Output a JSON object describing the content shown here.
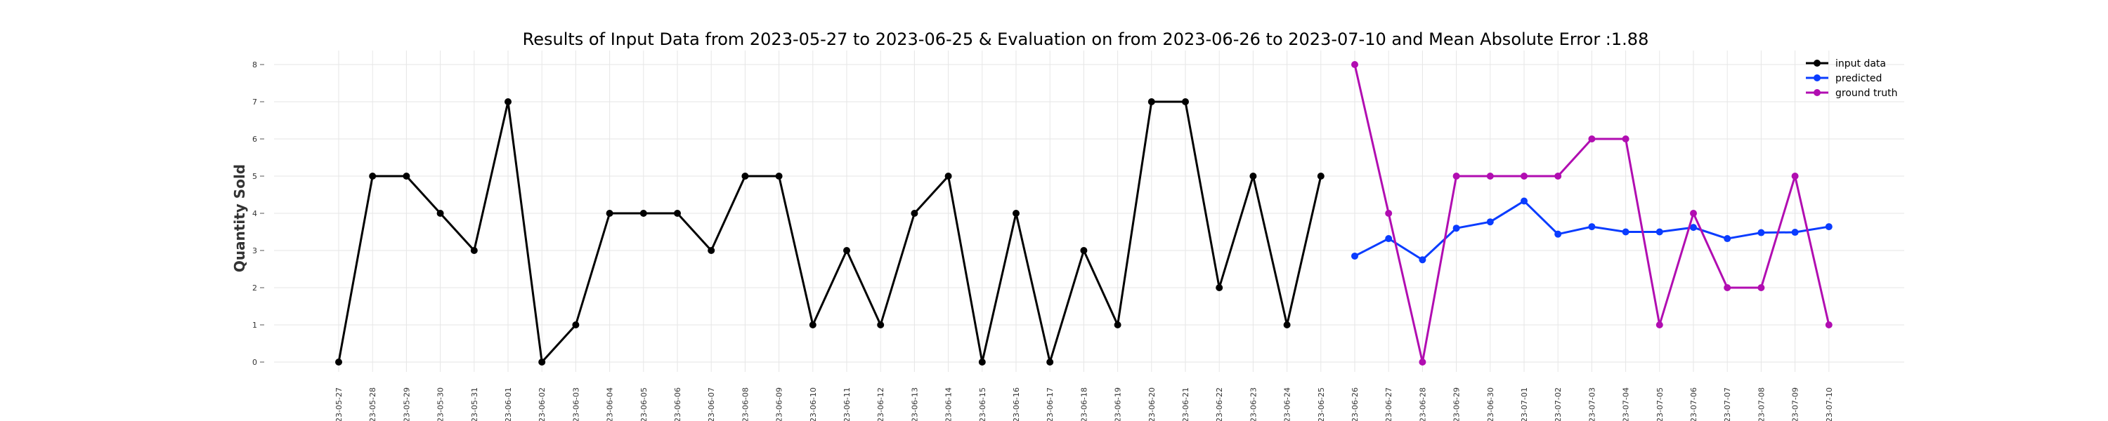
{
  "chart_data": {
    "type": "line",
    "title": "Results of Input Data from 2023-05-27 to 2023-06-25 & Evaluation on from 2023-06-26 to 2023-07-10 and Mean Absolute Error  :1.88",
    "ylabel": "Quantity Sold",
    "xlabel": "",
    "ylim": [
      0,
      8
    ],
    "yticks": [
      "0",
      "1",
      "2",
      "3",
      "4",
      "5",
      "6",
      "7",
      "8"
    ],
    "grid": true,
    "legend_position": "top-right",
    "x_tick_labels": [
      "2023-05-27",
      "2023-05-28",
      "2023-05-29",
      "2023-05-30",
      "2023-05-31",
      "2023-06-01",
      "2023-06-02",
      "2023-06-03",
      "2023-06-04",
      "2023-06-05",
      "2023-06-06",
      "2023-06-07",
      "2023-06-08",
      "2023-06-09",
      "2023-06-10",
      "2023-06-11",
      "2023-06-12",
      "2023-06-13",
      "2023-06-14",
      "2023-06-15",
      "2023-06-16",
      "2023-06-17",
      "2023-06-18",
      "2023-06-19",
      "2023-06-20",
      "2023-06-21",
      "2023-06-22",
      "2023-06-23",
      "2023-06-24",
      "2023-06-25",
      "2023-06-26",
      "2023-06-27",
      "2023-06-28",
      "2023-06-29",
      "2023-06-30",
      "2023-07-01",
      "2023-07-02",
      "2023-07-03",
      "2023-07-04",
      "2023-07-05",
      "2023-07-06",
      "2023-07-07",
      "2023-07-08",
      "2023-07-09",
      "2023-07-10"
    ],
    "series": [
      {
        "name": "input data",
        "color": "#000000",
        "x": [
          "2023-05-27",
          "2023-05-28",
          "2023-05-29",
          "2023-05-30",
          "2023-05-31",
          "2023-06-01",
          "2023-06-02",
          "2023-06-03",
          "2023-06-04",
          "2023-06-05",
          "2023-06-06",
          "2023-06-07",
          "2023-06-08",
          "2023-06-09",
          "2023-06-10",
          "2023-06-11",
          "2023-06-12",
          "2023-06-13",
          "2023-06-14",
          "2023-06-15",
          "2023-06-16",
          "2023-06-17",
          "2023-06-18",
          "2023-06-19",
          "2023-06-20",
          "2023-06-21",
          "2023-06-22",
          "2023-06-23",
          "2023-06-24",
          "2023-06-25"
        ],
        "values": [
          0,
          5,
          5,
          4,
          3,
          7,
          0,
          1,
          4,
          4,
          4,
          3,
          5,
          5,
          1,
          3,
          1,
          4,
          5,
          0,
          4,
          0,
          3,
          1,
          7,
          7,
          2,
          5,
          1,
          5
        ]
      },
      {
        "name": "predicted",
        "color": "#0a3cff",
        "x": [
          "2023-06-26",
          "2023-06-27",
          "2023-06-28",
          "2023-06-29",
          "2023-06-30",
          "2023-07-01",
          "2023-07-02",
          "2023-07-03",
          "2023-07-04",
          "2023-07-05",
          "2023-07-06",
          "2023-07-07",
          "2023-07-08",
          "2023-07-09",
          "2023-07-10"
        ],
        "values": [
          2.85,
          3.32,
          2.75,
          3.6,
          3.77,
          4.33,
          3.44,
          3.64,
          3.5,
          3.5,
          3.62,
          3.32,
          3.48,
          3.49,
          3.64
        ]
      },
      {
        "name": "ground truth",
        "color": "#b10db1",
        "x": [
          "2023-06-26",
          "2023-06-27",
          "2023-06-28",
          "2023-06-29",
          "2023-06-30",
          "2023-07-01",
          "2023-07-02",
          "2023-07-03",
          "2023-07-04",
          "2023-07-05",
          "2023-07-06",
          "2023-07-07",
          "2023-07-08",
          "2023-07-09",
          "2023-07-10"
        ],
        "values": [
          8,
          4,
          0,
          5,
          5,
          5,
          5,
          6,
          6,
          1,
          4,
          2,
          2,
          5,
          1
        ]
      }
    ]
  }
}
